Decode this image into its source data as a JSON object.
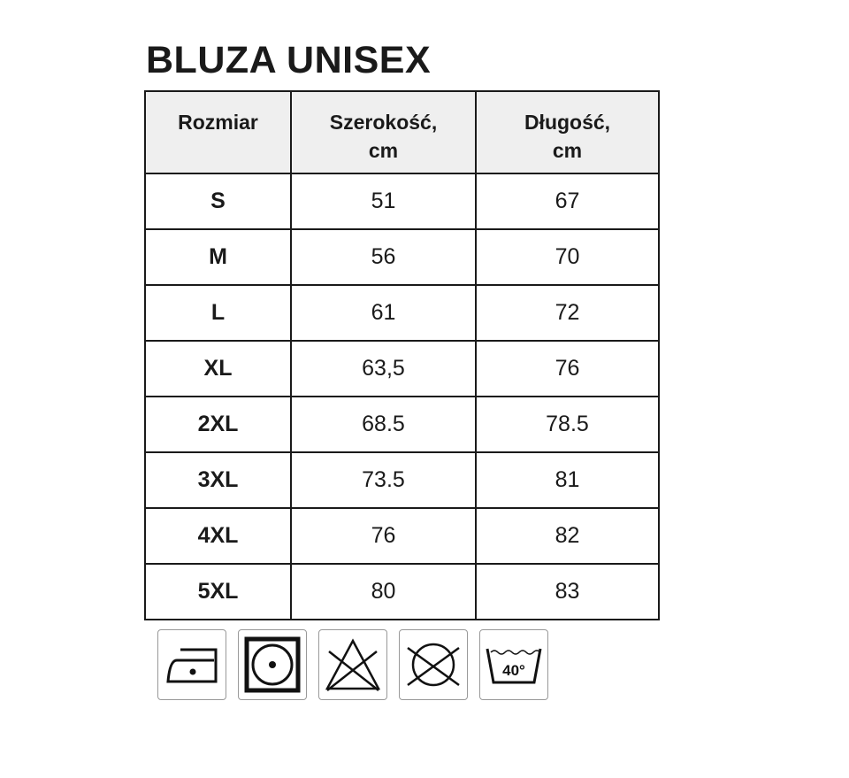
{
  "title": "BLUZA UNISEX",
  "table": {
    "headers": [
      {
        "line1": "Rozmiar",
        "line2": ""
      },
      {
        "line1": "Szerokość,",
        "line2": "cm"
      },
      {
        "line1": "Długość,",
        "line2": "cm"
      }
    ],
    "rows": [
      {
        "size": "S",
        "width": "51",
        "length": "67"
      },
      {
        "size": "M",
        "width": "56",
        "length": "70"
      },
      {
        "size": "L",
        "width": "61",
        "length": "72"
      },
      {
        "size": "XL",
        "width": "63,5",
        "length": "76"
      },
      {
        "size": "2XL",
        "width": "68.5",
        "length": "78.5"
      },
      {
        "size": "3XL",
        "width": "73.5",
        "length": "81"
      },
      {
        "size": "4XL",
        "width": "76",
        "length": "82"
      },
      {
        "size": "5XL",
        "width": "80",
        "length": "83"
      }
    ]
  },
  "care_icons": [
    {
      "name": "iron-low-temperature-icon"
    },
    {
      "name": "tumble-dry-icon"
    },
    {
      "name": "do-not-bleach-icon"
    },
    {
      "name": "do-not-dry-clean-icon"
    },
    {
      "name": "wash-40-icon",
      "label": "40°"
    }
  ]
}
